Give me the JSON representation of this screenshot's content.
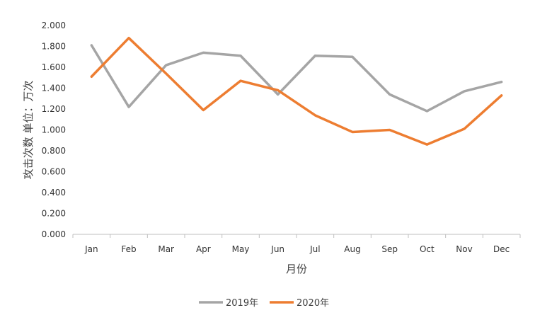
{
  "chart_data": {
    "type": "line",
    "title": "",
    "xlabel": "月份",
    "ylabel": "攻击次数 单位：万次",
    "categories": [
      "Jan",
      "Feb",
      "Mar",
      "Apr",
      "May",
      "Jun",
      "Jul",
      "Aug",
      "Sep",
      "Oct",
      "Nov",
      "Dec"
    ],
    "ylim": [
      0,
      2
    ],
    "yticks": [
      "0.000",
      "0.200",
      "0.400",
      "0.600",
      "0.800",
      "1.000",
      "1.200",
      "1.400",
      "1.600",
      "1.800",
      "2.000"
    ],
    "grid": false,
    "legend_position": "bottom",
    "series": [
      {
        "name": "2019年",
        "color": "#a5a5a5",
        "values": [
          1.81,
          1.22,
          1.62,
          1.74,
          1.71,
          1.34,
          1.71,
          1.7,
          1.34,
          1.18,
          1.37,
          1.46
        ]
      },
      {
        "name": "2020年",
        "color": "#ed7d31",
        "values": [
          1.51,
          1.88,
          1.54,
          1.19,
          1.47,
          1.38,
          1.14,
          0.98,
          1.0,
          0.86,
          1.01,
          1.33
        ]
      }
    ]
  }
}
